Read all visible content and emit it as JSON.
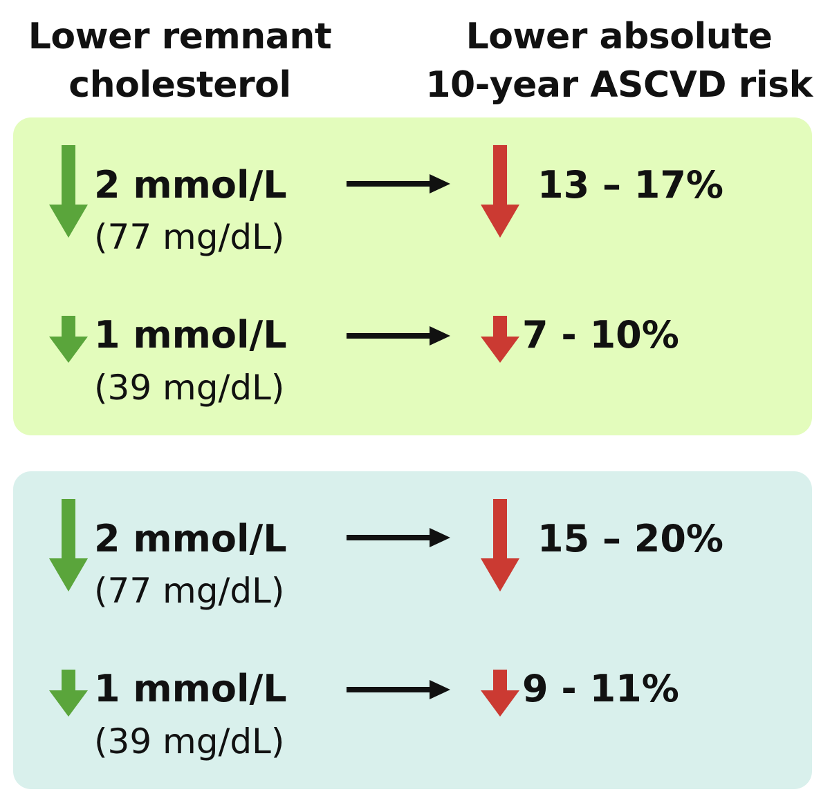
{
  "header": {
    "left_line1": "Lower remnant",
    "left_line2": "cholesterol",
    "right_line1": "Lower absolute",
    "right_line2": "10-year ASCVD risk"
  },
  "colors": {
    "panel1_bg": "#e3fcbc",
    "panel2_bg": "#d9f0ec",
    "green_arrow": "#5aa53b",
    "red_arrow": "#cb3a32",
    "black_arrow": "#111111"
  },
  "panels": [
    {
      "rows": [
        {
          "mmol": "2 mmol/L",
          "mgdl": "(77 mg/dL)",
          "risk": "13 – 17%"
        },
        {
          "mmol": "1 mmol/L",
          "mgdl": "(39 mg/dL)",
          "risk": "7 - 10%"
        }
      ]
    },
    {
      "rows": [
        {
          "mmol": "2 mmol/L",
          "mgdl": "(77 mg/dL)",
          "risk": "15 – 20%"
        },
        {
          "mmol": "1 mmol/L",
          "mgdl": "(39 mg/dL)",
          "risk": "9 - 11%"
        }
      ]
    }
  ]
}
